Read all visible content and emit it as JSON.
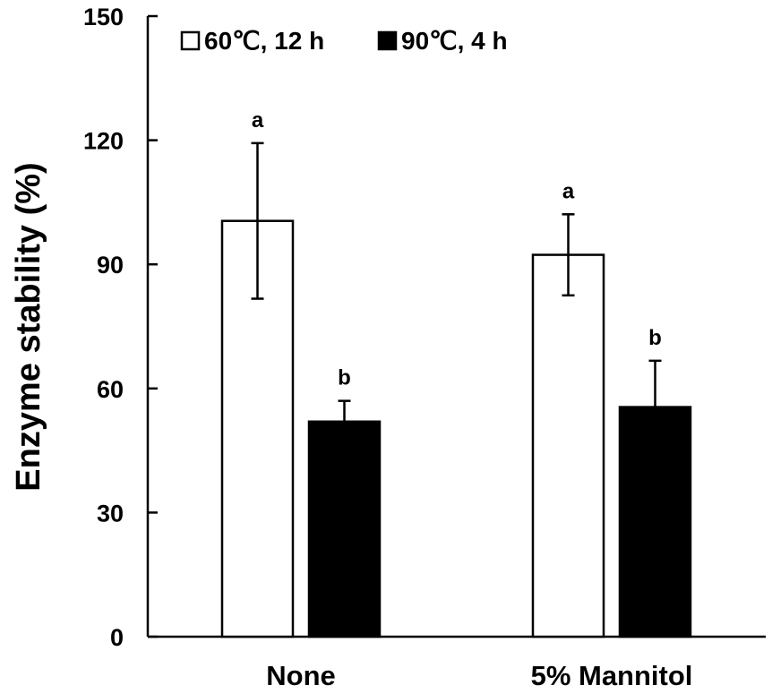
{
  "chart_data": {
    "type": "bar",
    "title": "",
    "xlabel": "",
    "ylabel": "Enzyme stability (%)",
    "ylim": [
      0,
      150
    ],
    "yticks": [
      0,
      30,
      60,
      90,
      120,
      150
    ],
    "categories": [
      "None",
      "5% Mannitol"
    ],
    "series": [
      {
        "name": "60℃, 12 h",
        "color": "#ffffff",
        "values": [
          100.5,
          92.3
        ],
        "errors": [
          18.8,
          9.8
        ],
        "labels": [
          "a",
          "a"
        ]
      },
      {
        "name": "90℃, 4 h",
        "color": "#000000",
        "values": [
          52.0,
          55.5
        ],
        "errors": [
          5.0,
          11.2
        ],
        "labels": [
          "b",
          "b"
        ]
      }
    ],
    "legend_position": "top-left",
    "grid": false
  }
}
